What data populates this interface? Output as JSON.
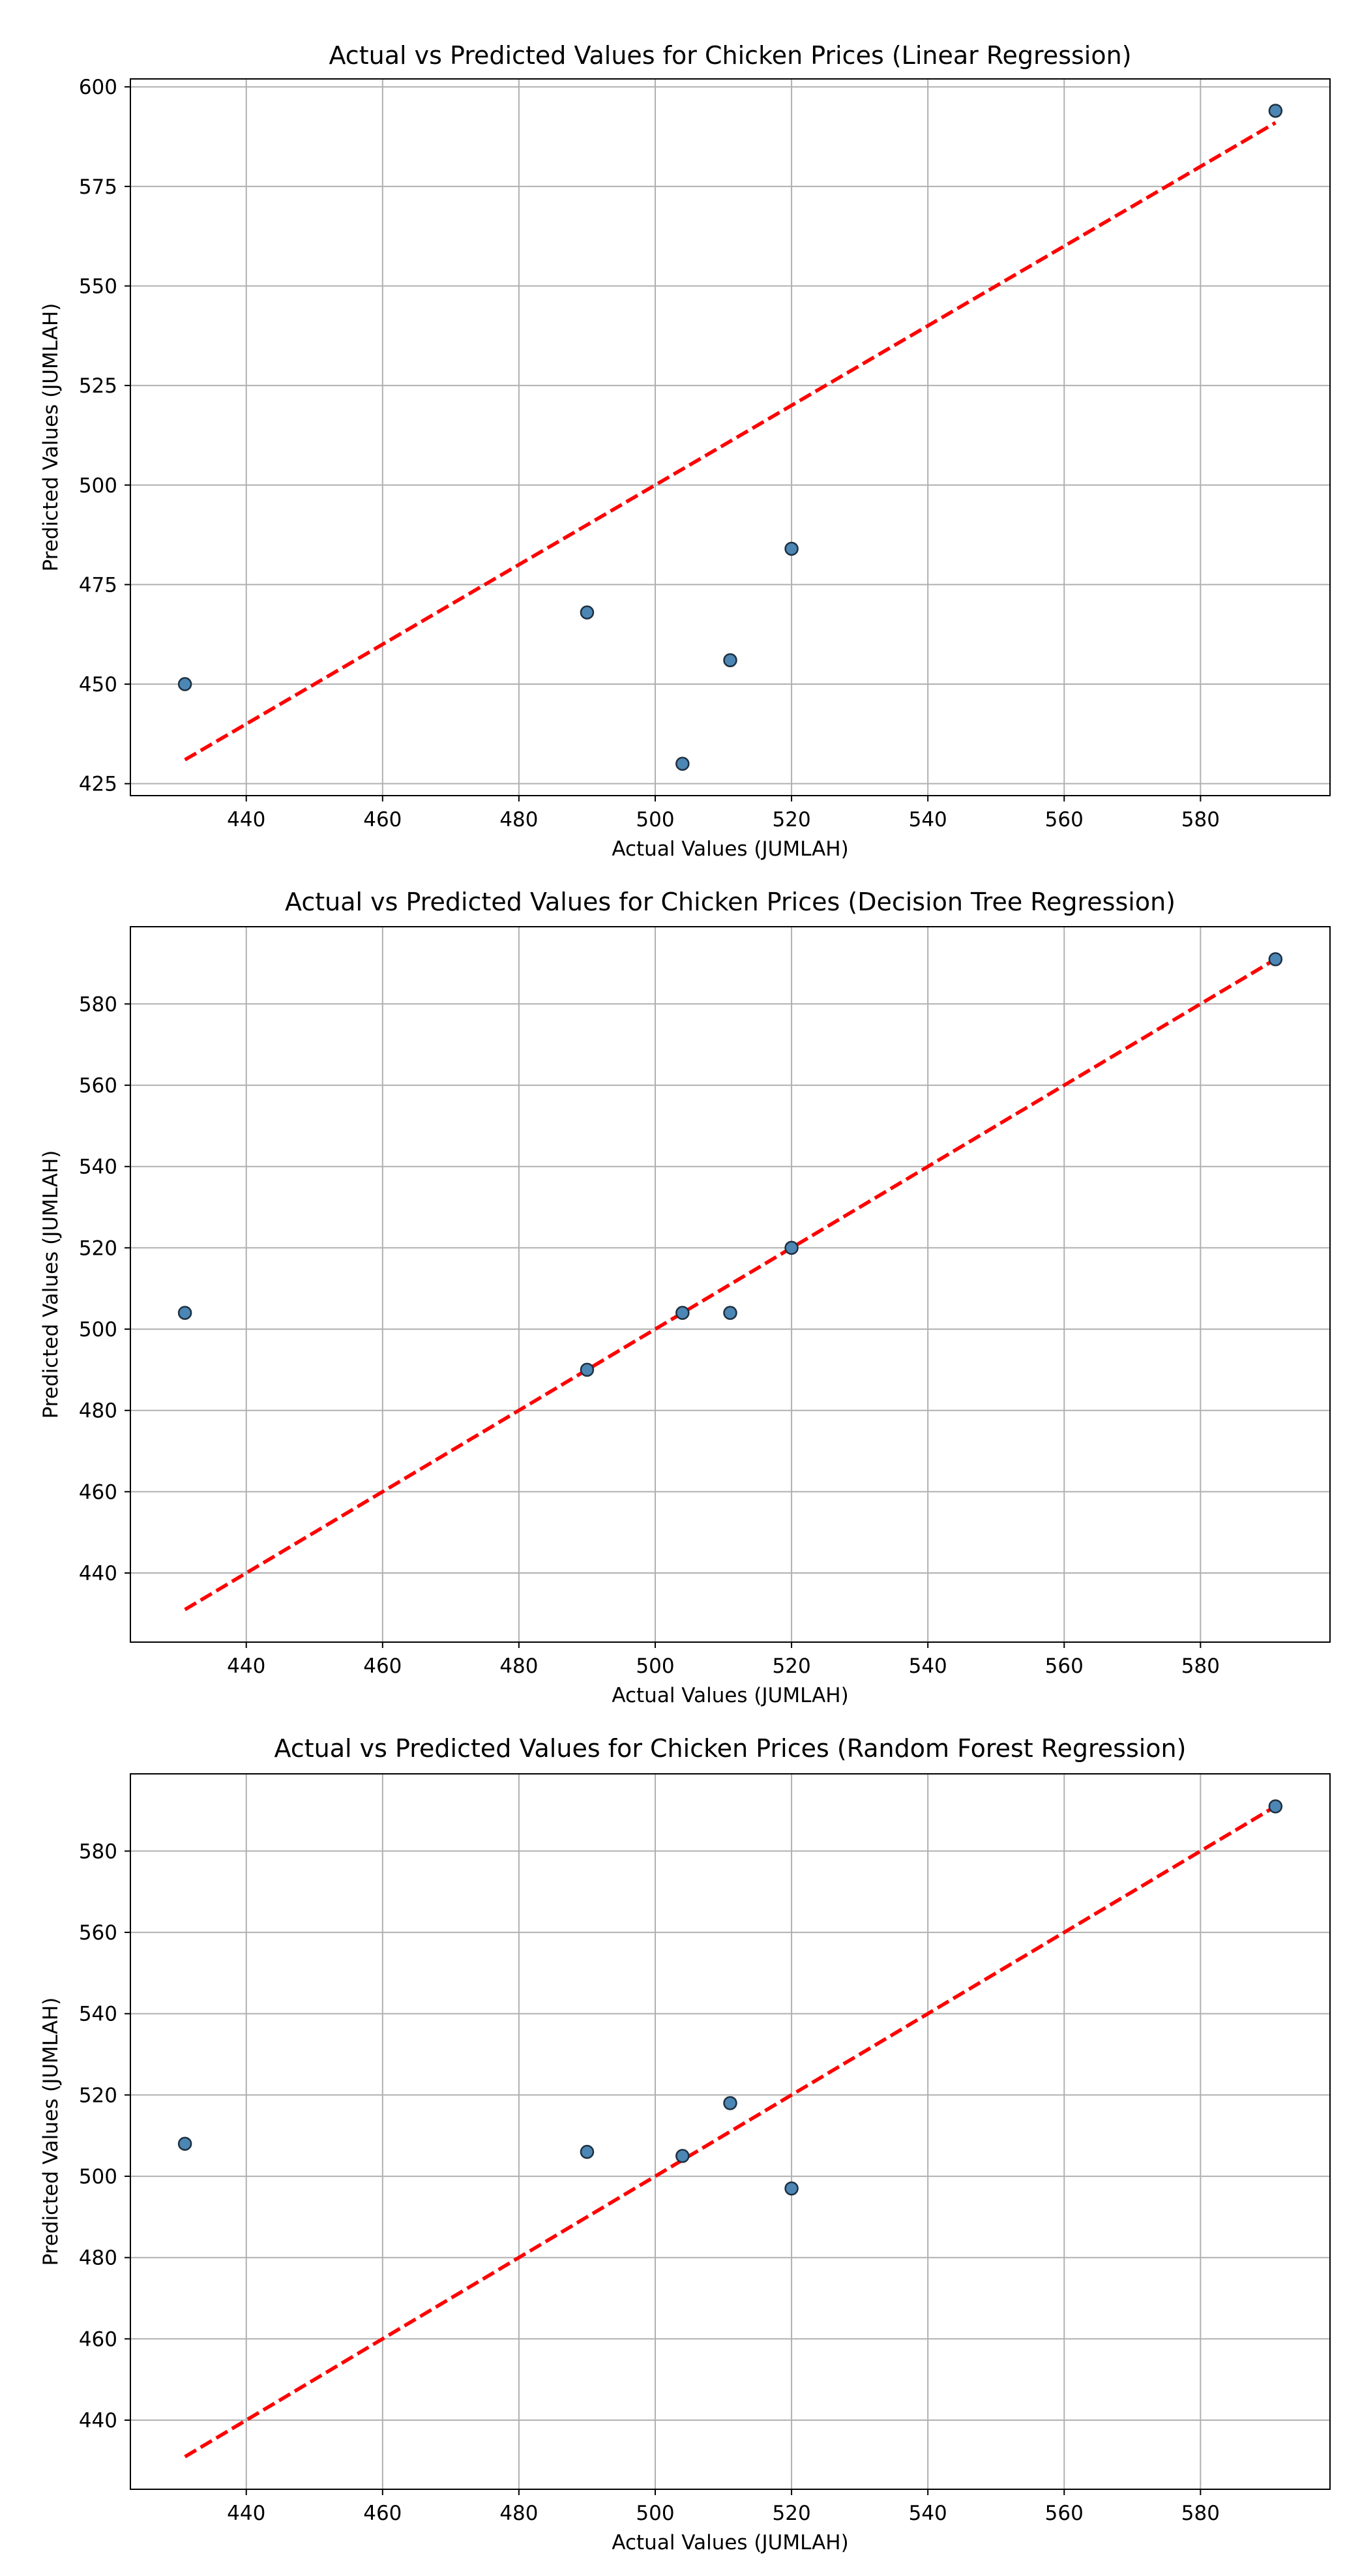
{
  "chart_data": [
    {
      "type": "scatter",
      "title": "Actual vs Predicted Values for Chicken Prices (Linear Regression)",
      "xlabel": "Actual Values (JUMLAH)",
      "ylabel": "Predicted Values (JUMLAH)",
      "xlim": [
        423,
        599
      ],
      "ylim": [
        422,
        602
      ],
      "xticks": [
        440,
        460,
        480,
        500,
        520,
        540,
        560,
        580
      ],
      "yticks": [
        425,
        450,
        475,
        500,
        525,
        550,
        575,
        600
      ],
      "grid": true,
      "legend": "none",
      "points": [
        {
          "x": 431,
          "y": 450
        },
        {
          "x": 490,
          "y": 468
        },
        {
          "x": 504,
          "y": 430
        },
        {
          "x": 511,
          "y": 456
        },
        {
          "x": 520,
          "y": 484
        },
        {
          "x": 591,
          "y": 594
        }
      ],
      "reference_line": {
        "from": [
          431,
          431
        ],
        "to": [
          591,
          591
        ],
        "style": "dashed",
        "color": "#ff0000"
      },
      "point_color": "#4c86b4",
      "point_edge_color": "#1e3040"
    },
    {
      "type": "scatter",
      "title": "Actual vs Predicted Values for Chicken Prices (Decision Tree Regression)",
      "xlabel": "Actual Values (JUMLAH)",
      "ylabel": "Predicted Values (JUMLAH)",
      "xlim": [
        423,
        599
      ],
      "ylim": [
        423,
        599
      ],
      "xticks": [
        440,
        460,
        480,
        500,
        520,
        540,
        560,
        580
      ],
      "yticks": [
        440,
        460,
        480,
        500,
        520,
        540,
        560,
        580
      ],
      "grid": true,
      "legend": "none",
      "points": [
        {
          "x": 431,
          "y": 504
        },
        {
          "x": 490,
          "y": 490
        },
        {
          "x": 504,
          "y": 504
        },
        {
          "x": 511,
          "y": 504
        },
        {
          "x": 520,
          "y": 520
        },
        {
          "x": 591,
          "y": 591
        }
      ],
      "reference_line": {
        "from": [
          431,
          431
        ],
        "to": [
          591,
          591
        ],
        "style": "dashed",
        "color": "#ff0000"
      },
      "point_color": "#4c86b4",
      "point_edge_color": "#1e3040"
    },
    {
      "type": "scatter",
      "title": "Actual vs Predicted Values for Chicken Prices (Random Forest Regression)",
      "xlabel": "Actual Values (JUMLAH)",
      "ylabel": "Predicted Values (JUMLAH)",
      "xlim": [
        423,
        599
      ],
      "ylim": [
        423,
        599
      ],
      "xticks": [
        440,
        460,
        480,
        500,
        520,
        540,
        560,
        580
      ],
      "yticks": [
        440,
        460,
        480,
        500,
        520,
        540,
        560,
        580
      ],
      "grid": true,
      "legend": "none",
      "points": [
        {
          "x": 431,
          "y": 508
        },
        {
          "x": 490,
          "y": 506
        },
        {
          "x": 504,
          "y": 505
        },
        {
          "x": 511,
          "y": 518
        },
        {
          "x": 520,
          "y": 497
        },
        {
          "x": 591,
          "y": 591
        }
      ],
      "reference_line": {
        "from": [
          431,
          431
        ],
        "to": [
          591,
          591
        ],
        "style": "dashed",
        "color": "#ff0000"
      },
      "point_color": "#4c86b4",
      "point_edge_color": "#1e3040"
    }
  ]
}
